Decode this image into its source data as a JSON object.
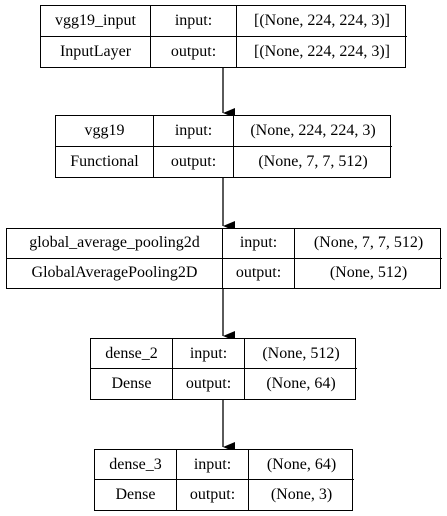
{
  "layers": [
    {
      "name": "vgg19_input",
      "type": "InputLayer",
      "input_label": "input:",
      "output_label": "output:",
      "input_shape": "[(None, 224, 224, 3)]",
      "output_shape": "[(None, 224, 224, 3)]"
    },
    {
      "name": "vgg19",
      "type": "Functional",
      "input_label": "input:",
      "output_label": "output:",
      "input_shape": "(None, 224, 224, 3)",
      "output_shape": "(None, 7, 7, 512)"
    },
    {
      "name": "global_average_pooling2d",
      "type": "GlobalAveragePooling2D",
      "input_label": "input:",
      "output_label": "output:",
      "input_shape": "(None, 7, 7, 512)",
      "output_shape": "(None, 512)"
    },
    {
      "name": "dense_2",
      "type": "Dense",
      "input_label": "input:",
      "output_label": "output:",
      "input_shape": "(None, 512)",
      "output_shape": "(None, 64)"
    },
    {
      "name": "dense_3",
      "type": "Dense",
      "input_label": "input:",
      "output_label": "output:",
      "input_shape": "(None, 64)",
      "output_shape": "(None, 3)"
    }
  ],
  "colors": {
    "border": "#000000",
    "background": "#ffffff",
    "text": "#000000"
  }
}
